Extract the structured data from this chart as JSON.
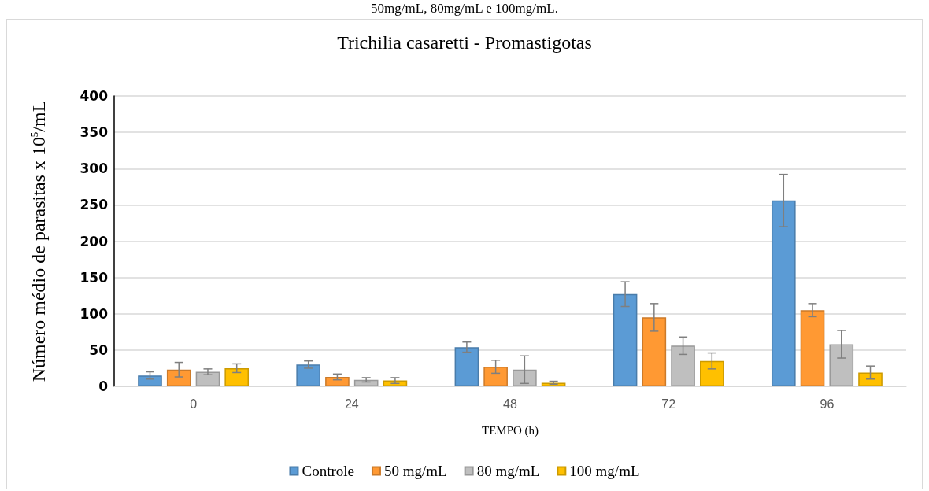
{
  "chart_data": {
    "type": "bar",
    "title": "Trichilia casaretti - Promastigotas",
    "annotations": [
      "50mg/mL, 80mg/mL e 100mg/mL."
    ],
    "xlabel": "TEMPO (h)",
    "ylabel": "Número médio de parasitas x 10$^{5}$/mL",
    "categories": [
      "0",
      "24",
      "48",
      "72",
      "96"
    ],
    "series": [
      {
        "name": "Controle",
        "color": "#5b9bd5",
        "values": [
          15,
          30,
          54,
          127,
          256
        ],
        "errors": [
          5,
          5,
          7,
          17,
          36
        ]
      },
      {
        "name": "50 mg/mL",
        "color": "#ff9933",
        "values": [
          23,
          13,
          27,
          95,
          105
        ],
        "errors": [
          10,
          4,
          9,
          19,
          9
        ]
      },
      {
        "name": "80 mg/mL",
        "color": "#bfbfbf",
        "values": [
          20,
          9,
          23,
          56,
          58
        ],
        "errors": [
          4,
          3,
          19,
          12,
          19
        ]
      },
      {
        "name": "100 mg/mL",
        "color": "#ffc000",
        "values": [
          25,
          8,
          5,
          35,
          19
        ],
        "errors": [
          6,
          4,
          2,
          11,
          9
        ]
      }
    ],
    "ylim": [
      0,
      400
    ],
    "yticks": [
      0,
      50,
      100,
      150,
      200,
      250,
      300,
      350,
      400
    ],
    "grid": "y",
    "legend": "bottom"
  }
}
